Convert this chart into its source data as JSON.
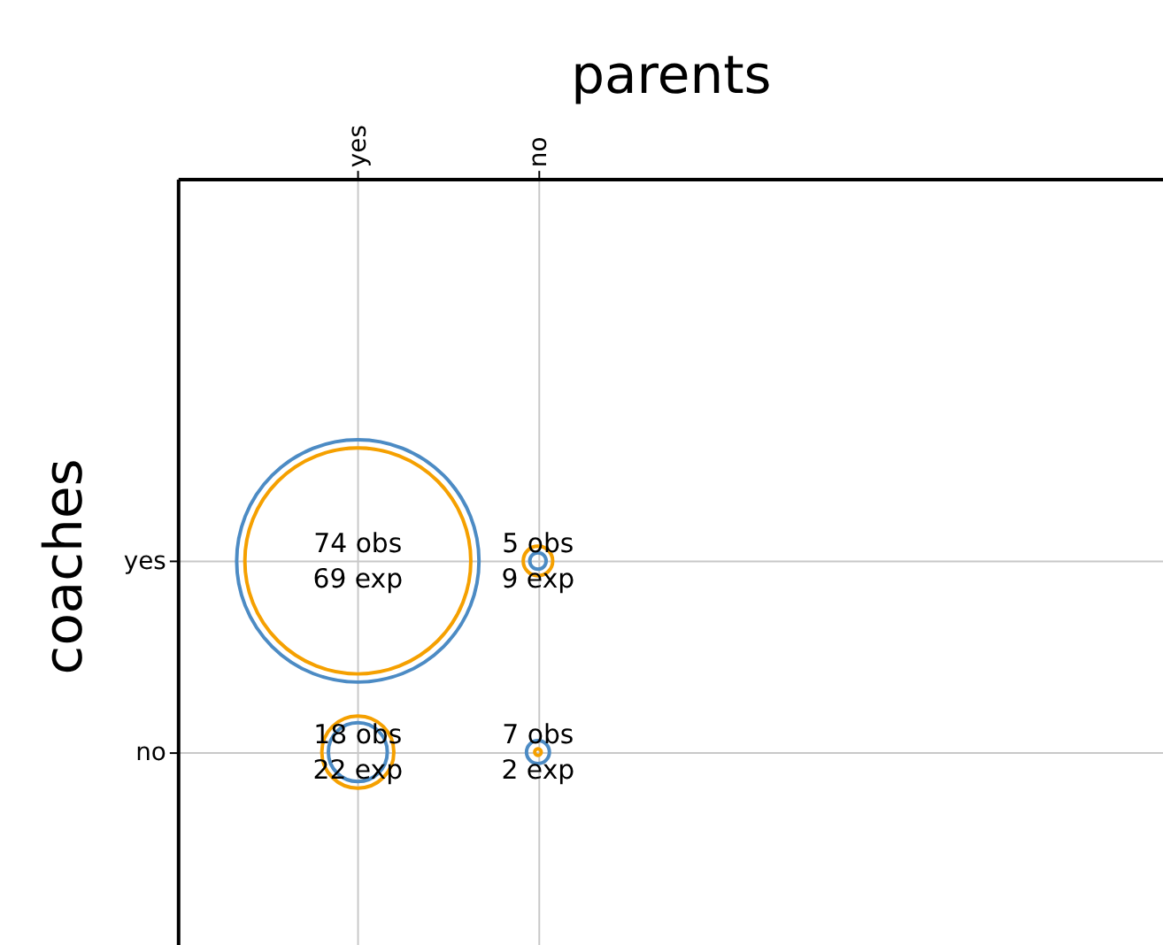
{
  "chart_data": {
    "type": "other",
    "xlabel": "parents",
    "ylabel": "coaches",
    "categories": [
      "yes",
      "no"
    ],
    "y_categories": [
      "yes",
      "no"
    ],
    "series": [
      {
        "color": "#4c8bc4",
        "values": [
          74,
          5
        ],
        "value_labels": [
          "74 obs",
          "5 obs"
        ]
      },
      {
        "color": "#f5a000",
        "values": [
          69,
          9
        ],
        "value_labels": [
          "69 exp",
          "9 exp"
        ]
      },
      {
        "color": "#4c8bc4",
        "values": [
          18,
          7
        ],
        "value_labels": [
          "18 obs",
          "7 obs"
        ]
      },
      {
        "color": "#f5a000",
        "values": [
          22,
          2
        ],
        "value_labels": [
          "22 exp",
          "2 exp"
        ]
      }
    ]
  }
}
